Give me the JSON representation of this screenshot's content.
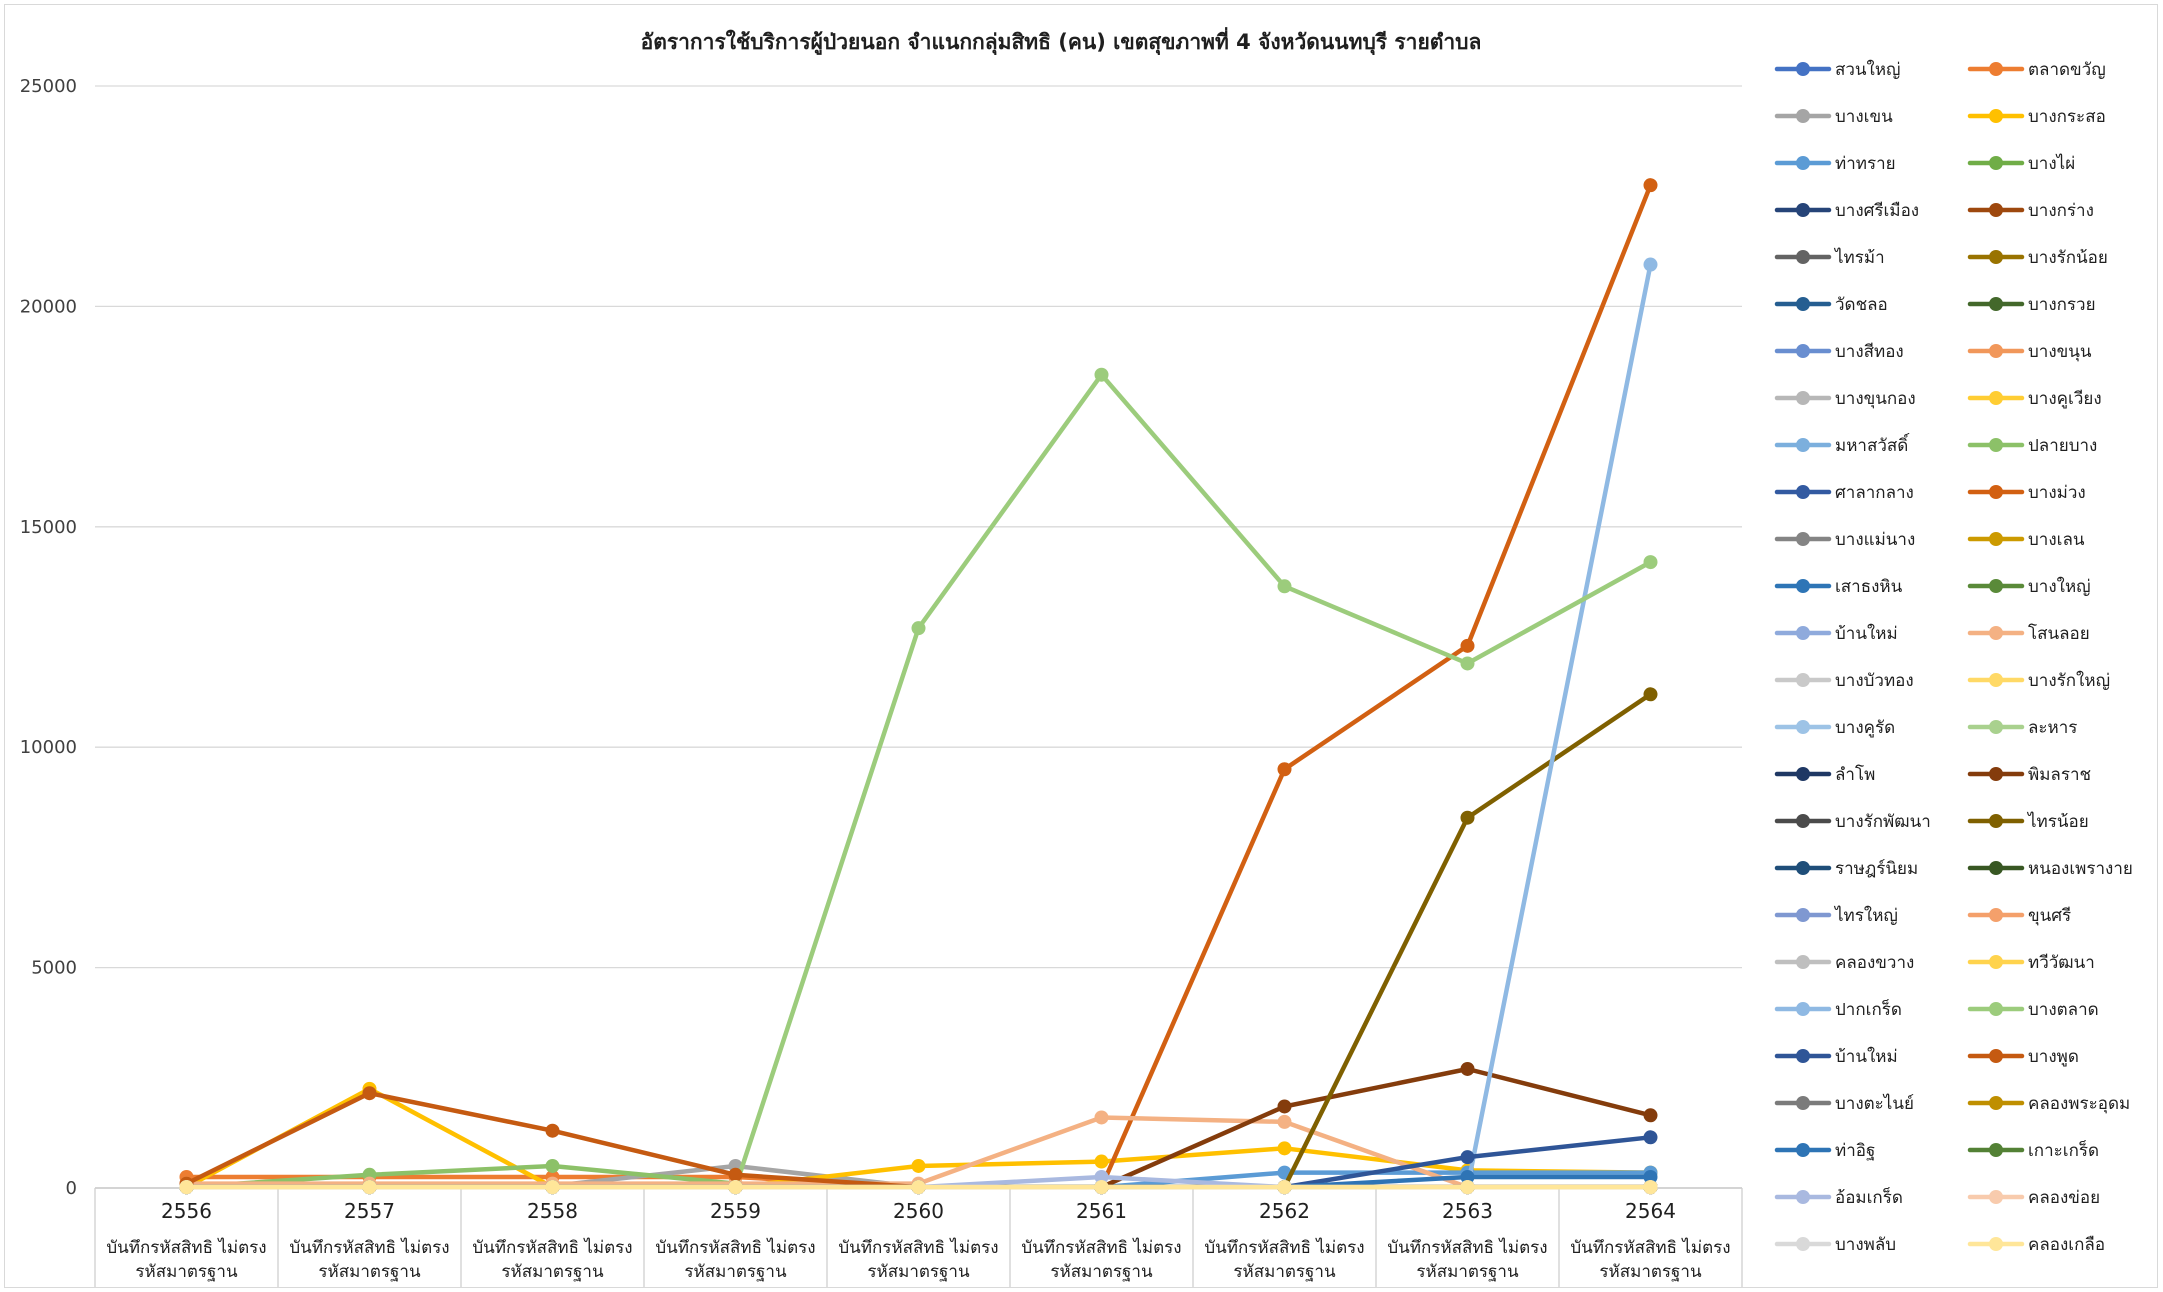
{
  "chart_data": {
    "type": "line",
    "title": "อัตราการใช้บริการผู้ป่วยนอก จำแนกกลุ่มสิทธิ (คน) เขตสุขภาพที่ 4 จังหวัดนนทบุรี รายตำบล",
    "xlabel": "",
    "ylabel": "",
    "ylim": [
      0,
      25000
    ],
    "yticks": [
      0,
      5000,
      10000,
      15000,
      20000,
      25000
    ],
    "grid": true,
    "legend_position": "right",
    "categories": [
      "2556",
      "2557",
      "2558",
      "2559",
      "2560",
      "2561",
      "2562",
      "2563",
      "2564"
    ],
    "category_sublabel": [
      "บันทึกรหัสสิทธิ ไม่ตรง",
      "รหัสมาตรฐาน"
    ],
    "series": [
      {
        "name": "สวนใหญ่",
        "color": "#4472c4",
        "values": [
          20,
          20,
          20,
          20,
          20,
          20,
          20,
          20,
          20
        ]
      },
      {
        "name": "ตลาดขวัญ",
        "color": "#ed7d31",
        "values": [
          250,
          250,
          250,
          250,
          20,
          20,
          20,
          20,
          20
        ]
      },
      {
        "name": "บางเขน",
        "color": "#a5a5a5",
        "values": [
          50,
          50,
          50,
          500,
          20,
          20,
          20,
          20,
          20
        ]
      },
      {
        "name": "บางกระสอ",
        "color": "#ffc000",
        "values": [
          20,
          2250,
          20,
          20,
          500,
          600,
          900,
          400,
          350
        ]
      },
      {
        "name": "ท่าทราย",
        "color": "#5b9bd5",
        "values": [
          20,
          20,
          20,
          20,
          20,
          20,
          350,
          350,
          350
        ]
      },
      {
        "name": "บางไผ่",
        "color": "#70ad47",
        "values": [
          20,
          20,
          20,
          20,
          20,
          20,
          20,
          20,
          20
        ]
      },
      {
        "name": "บางศรีเมือง",
        "color": "#264478",
        "values": [
          20,
          20,
          20,
          20,
          20,
          20,
          20,
          20,
          20
        ]
      },
      {
        "name": "บางกร่าง",
        "color": "#9e480e",
        "values": [
          20,
          20,
          20,
          20,
          20,
          20,
          20,
          20,
          20
        ]
      },
      {
        "name": "ไทรม้า",
        "color": "#636363",
        "values": [
          20,
          20,
          20,
          20,
          20,
          20,
          20,
          20,
          20
        ]
      },
      {
        "name": "บางรักน้อย",
        "color": "#997300",
        "values": [
          20,
          20,
          20,
          20,
          20,
          20,
          20,
          20,
          20
        ]
      },
      {
        "name": "วัดชลอ",
        "color": "#255e91",
        "values": [
          20,
          20,
          20,
          20,
          20,
          20,
          20,
          20,
          20
        ]
      },
      {
        "name": "บางกรวย",
        "color": "#43682b",
        "values": [
          20,
          20,
          20,
          20,
          20,
          20,
          20,
          20,
          20
        ]
      },
      {
        "name": "บางสีทอง",
        "color": "#698ed0",
        "values": [
          20,
          20,
          20,
          20,
          20,
          20,
          20,
          20,
          20
        ]
      },
      {
        "name": "บางขนุน",
        "color": "#f1975a",
        "values": [
          20,
          20,
          20,
          20,
          20,
          20,
          20,
          20,
          20
        ]
      },
      {
        "name": "บางขุนกอง",
        "color": "#b7b7b7",
        "values": [
          20,
          20,
          20,
          20,
          20,
          20,
          20,
          20,
          20
        ]
      },
      {
        "name": "บางคูเวียง",
        "color": "#ffcd33",
        "values": [
          20,
          20,
          20,
          20,
          20,
          20,
          20,
          20,
          20
        ]
      },
      {
        "name": "มหาสวัสดิ์",
        "color": "#7cafdd",
        "values": [
          20,
          20,
          20,
          20,
          20,
          20,
          20,
          20,
          20
        ]
      },
      {
        "name": "ปลายบาง",
        "color": "#8cc168",
        "values": [
          20,
          300,
          500,
          100,
          20,
          20,
          20,
          20,
          20
        ]
      },
      {
        "name": "ศาลากลาง",
        "color": "#335aa1",
        "values": [
          20,
          20,
          20,
          20,
          20,
          20,
          20,
          20,
          20
        ]
      },
      {
        "name": "บางม่วง",
        "color": "#d26012",
        "values": [
          20,
          20,
          20,
          20,
          20,
          20,
          9500,
          12300,
          22750
        ]
      },
      {
        "name": "บางแม่นาง",
        "color": "#848484",
        "values": [
          20,
          20,
          20,
          20,
          20,
          20,
          20,
          20,
          20
        ]
      },
      {
        "name": "บางเลน",
        "color": "#cc9a00",
        "values": [
          20,
          20,
          20,
          20,
          20,
          20,
          20,
          20,
          20
        ]
      },
      {
        "name": "เสาธงหิน",
        "color": "#2e75b6",
        "values": [
          20,
          20,
          20,
          20,
          20,
          20,
          20,
          20,
          20
        ]
      },
      {
        "name": "บางใหญ่",
        "color": "#5a8a39",
        "values": [
          20,
          20,
          20,
          20,
          20,
          20,
          20,
          20,
          20
        ]
      },
      {
        "name": "บ้านใหม่",
        "color": "#8faadc",
        "values": [
          20,
          20,
          20,
          20,
          20,
          20,
          20,
          20,
          20
        ]
      },
      {
        "name": "โสนลอย",
        "color": "#f4b183",
        "values": [
          100,
          100,
          100,
          100,
          100,
          1600,
          1500,
          20,
          20
        ]
      },
      {
        "name": "บางบัวทอง",
        "color": "#c9c9c9",
        "values": [
          20,
          20,
          20,
          20,
          20,
          20,
          20,
          20,
          20
        ]
      },
      {
        "name": "บางรักใหญ่",
        "color": "#ffd966",
        "values": [
          20,
          20,
          20,
          20,
          20,
          20,
          20,
          20,
          20
        ]
      },
      {
        "name": "บางคูรัด",
        "color": "#9dc3e6",
        "values": [
          20,
          20,
          20,
          20,
          20,
          20,
          20,
          20,
          20
        ]
      },
      {
        "name": "ละหาร",
        "color": "#a9d18e",
        "values": [
          20,
          20,
          20,
          20,
          20,
          20,
          20,
          20,
          20
        ]
      },
      {
        "name": "ลำโพ",
        "color": "#1f3864",
        "values": [
          20,
          20,
          20,
          20,
          20,
          20,
          20,
          20,
          20
        ]
      },
      {
        "name": "พิมลราช",
        "color": "#843c0c",
        "values": [
          20,
          20,
          20,
          20,
          20,
          20,
          1850,
          2700,
          1650
        ]
      },
      {
        "name": "บางรักพัฒนา",
        "color": "#4b4b4b",
        "values": [
          20,
          20,
          20,
          20,
          20,
          20,
          20,
          20,
          20
        ]
      },
      {
        "name": "ไทรน้อย",
        "color": "#7f6000",
        "values": [
          20,
          20,
          20,
          20,
          20,
          20,
          20,
          8400,
          11200
        ]
      },
      {
        "name": "ราษฎร์นิยม",
        "color": "#1f4e79",
        "values": [
          20,
          20,
          20,
          20,
          20,
          20,
          20,
          20,
          20
        ]
      },
      {
        "name": "หนองเพรางาย",
        "color": "#385723",
        "values": [
          20,
          20,
          20,
          20,
          20,
          20,
          20,
          20,
          20
        ]
      },
      {
        "name": "ไทรใหญ่",
        "color": "#7f98d1",
        "values": [
          20,
          20,
          20,
          20,
          20,
          20,
          20,
          20,
          20
        ]
      },
      {
        "name": "ขุนศรี",
        "color": "#f4a06b",
        "values": [
          20,
          20,
          20,
          20,
          20,
          20,
          20,
          20,
          20
        ]
      },
      {
        "name": "คลองขวาง",
        "color": "#bfbfbf",
        "values": [
          20,
          20,
          20,
          20,
          20,
          20,
          20,
          20,
          20
        ]
      },
      {
        "name": "ทวีวัฒนา",
        "color": "#ffd34d",
        "values": [
          20,
          20,
          20,
          20,
          20,
          20,
          20,
          20,
          20
        ]
      },
      {
        "name": "ปากเกร็ด",
        "color": "#8fb9e3",
        "values": [
          20,
          20,
          20,
          20,
          20,
          20,
          20,
          20,
          20950
        ]
      },
      {
        "name": "บางตลาด",
        "color": "#9ccc7c",
        "values": [
          20,
          20,
          20,
          20,
          12700,
          18450,
          13650,
          11900,
          14200
        ]
      },
      {
        "name": "บ้านใหม่",
        "color": "#2f5597",
        "values": [
          20,
          20,
          20,
          20,
          20,
          20,
          20,
          700,
          1150
        ]
      },
      {
        "name": "บางพูด",
        "color": "#c55a11",
        "values": [
          100,
          2150,
          1300,
          300,
          20,
          20,
          20,
          20,
          20
        ]
      },
      {
        "name": "บางตะไนย์",
        "color": "#7b7b7b",
        "values": [
          20,
          20,
          20,
          20,
          20,
          20,
          20,
          20,
          20
        ]
      },
      {
        "name": "คลองพระอุดม",
        "color": "#bf8f00",
        "values": [
          20,
          20,
          20,
          20,
          20,
          20,
          20,
          20,
          20
        ]
      },
      {
        "name": "ท่าอิฐ",
        "color": "#2e74b5",
        "values": [
          20,
          20,
          20,
          20,
          20,
          20,
          20,
          250,
          250
        ]
      },
      {
        "name": "เกาะเกร็ด",
        "color": "#538135",
        "values": [
          20,
          20,
          20,
          20,
          20,
          20,
          20,
          20,
          20
        ]
      },
      {
        "name": "อ้อมเกร็ด",
        "color": "#a9b9e0",
        "values": [
          20,
          20,
          20,
          20,
          20,
          250,
          20,
          20,
          20
        ]
      },
      {
        "name": "คลองข่อย",
        "color": "#f8cbad",
        "values": [
          20,
          20,
          20,
          20,
          20,
          20,
          20,
          20,
          20
        ]
      },
      {
        "name": "บางพลับ",
        "color": "#d9d9d9",
        "values": [
          20,
          20,
          20,
          20,
          20,
          20,
          20,
          20,
          20
        ]
      },
      {
        "name": "คลองเกลือ",
        "color": "#ffe699",
        "values": [
          20,
          20,
          20,
          20,
          20,
          20,
          20,
          20,
          20
        ]
      }
    ]
  }
}
